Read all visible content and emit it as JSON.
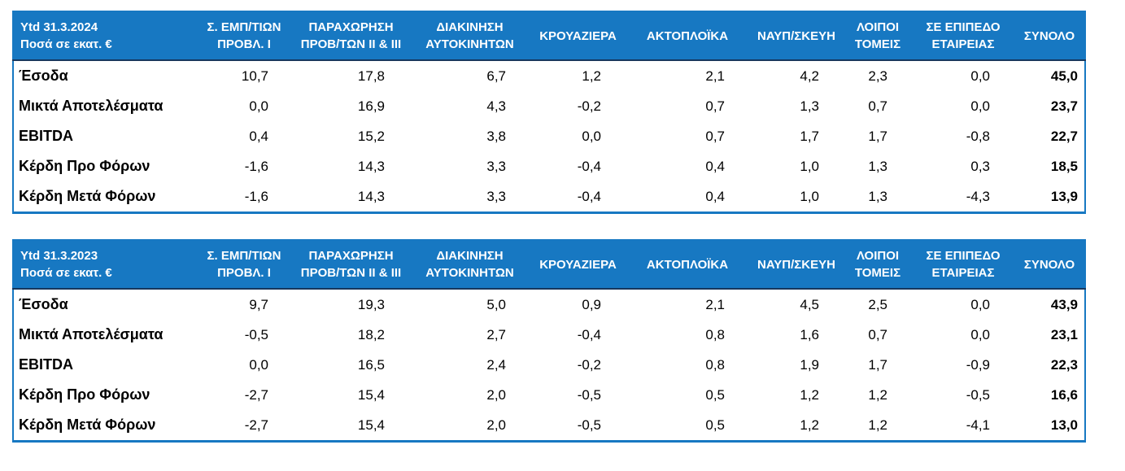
{
  "colors": {
    "header_bg": "#1778C2",
    "header_text": "#FFFFFF",
    "table_border": "#1778C2",
    "header_divider": "#17375D",
    "body_text": "#000000"
  },
  "columns": [
    {
      "line1": "Σ. ΕΜΠ/ΤΙΩΝ",
      "line2": "ΠΡΟΒΛ. Ι"
    },
    {
      "line1": "ΠΑΡΑΧΩΡΗΣΗ",
      "line2": "ΠΡΟΒ/ΤΩΝ ΙΙ & ΙΙΙ"
    },
    {
      "line1": "ΔΙΑΚΙΝΗΣΗ",
      "line2": "ΑΥΤΟΚΙΝΗΤΩΝ"
    },
    {
      "line1": "ΚΡΟΥΑΖΙΕΡΑ",
      "line2": ""
    },
    {
      "line1": "ΑΚΤΟΠΛΟΪΚΑ",
      "line2": ""
    },
    {
      "line1": "ΝΑΥΠ/ΣΚΕΥΗ",
      "line2": ""
    },
    {
      "line1": "ΛΟΙΠΟΙ",
      "line2": "ΤΟΜΕΙΣ"
    },
    {
      "line1": "ΣΕ ΕΠΙΠΕΔΟ",
      "line2": "ΕΤΑΙΡΕΙΑΣ"
    },
    {
      "line1": "ΣΥΝΟΛΟ",
      "line2": ""
    }
  ],
  "tables": [
    {
      "title_line1": "Ytd 31.3.2024",
      "title_line2": "Ποσά σε εκατ. €",
      "rows": [
        {
          "label": "Έσοδα",
          "values": [
            "10,7",
            "17,8",
            "6,7",
            "1,2",
            "2,1",
            "4,2",
            "2,3",
            "0,0",
            "45,0"
          ]
        },
        {
          "label": "Μικτά Αποτελέσματα",
          "values": [
            "0,0",
            "16,9",
            "4,3",
            "-0,2",
            "0,7",
            "1,3",
            "0,7",
            "0,0",
            "23,7"
          ]
        },
        {
          "label": "EBITDA",
          "values": [
            "0,4",
            "15,2",
            "3,8",
            "0,0",
            "0,7",
            "1,7",
            "1,7",
            "-0,8",
            "22,7"
          ]
        },
        {
          "label": "Κέρδη Προ Φόρων",
          "values": [
            "-1,6",
            "14,3",
            "3,3",
            "-0,4",
            "0,4",
            "1,0",
            "1,3",
            "0,3",
            "18,5"
          ]
        },
        {
          "label": "Κέρδη Μετά Φόρων",
          "values": [
            "-1,6",
            "14,3",
            "3,3",
            "-0,4",
            "0,4",
            "1,0",
            "1,3",
            "-4,3",
            "13,9"
          ]
        }
      ]
    },
    {
      "title_line1": "Ytd 31.3.2023",
      "title_line2": "Ποσά σε εκατ. €",
      "rows": [
        {
          "label": "Έσοδα",
          "values": [
            "9,7",
            "19,3",
            "5,0",
            "0,9",
            "2,1",
            "4,5",
            "2,5",
            "0,0",
            "43,9"
          ]
        },
        {
          "label": "Μικτά Αποτελέσματα",
          "values": [
            "-0,5",
            "18,2",
            "2,7",
            "-0,4",
            "0,8",
            "1,6",
            "0,7",
            "0,0",
            "23,1"
          ]
        },
        {
          "label": "EBITDA",
          "values": [
            "0,0",
            "16,5",
            "2,4",
            "-0,2",
            "0,8",
            "1,9",
            "1,7",
            "-0,9",
            "22,3"
          ]
        },
        {
          "label": "Κέρδη Προ Φόρων",
          "values": [
            "-2,7",
            "15,4",
            "2,0",
            "-0,5",
            "0,5",
            "1,2",
            "1,2",
            "-0,5",
            "16,6"
          ]
        },
        {
          "label": "Κέρδη Μετά Φόρων",
          "values": [
            "-2,7",
            "15,4",
            "2,0",
            "-0,5",
            "0,5",
            "1,2",
            "1,2",
            "-4,1",
            "13,0"
          ]
        }
      ]
    }
  ]
}
